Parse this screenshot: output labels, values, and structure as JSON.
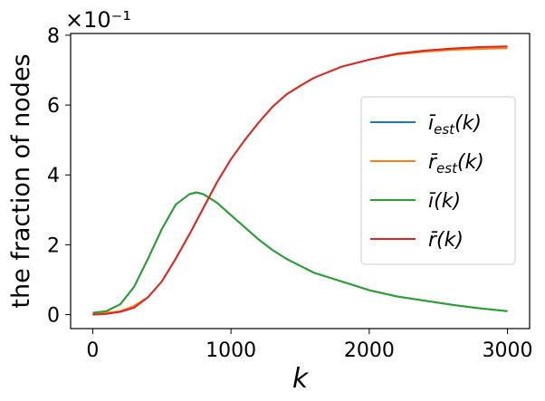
{
  "chart_data": {
    "type": "line",
    "xlabel": "k",
    "ylabel": "the fraction of nodes",
    "scale_note": "×10⁻¹",
    "xlim": [
      -160,
      3160
    ],
    "ylim": [
      -0.4,
      8.05
    ],
    "xticks": [
      0,
      1000,
      2000,
      3000
    ],
    "xtick_labels": [
      "0",
      "1000",
      "2000",
      "3000"
    ],
    "yticks": [
      0,
      2,
      4,
      6,
      8
    ],
    "ytick_labels": [
      "0",
      "2",
      "4",
      "6",
      "8"
    ],
    "grid": false,
    "legend_position": "center-right",
    "series": [
      {
        "name": "ī_est(k)",
        "label_main": "ī",
        "label_sub": "est",
        "label_tail": "(k)",
        "color": "#1f77b4",
        "x": [
          0,
          100,
          200,
          300,
          400,
          500,
          600,
          700,
          750,
          800,
          900,
          1000,
          1100,
          1200,
          1300,
          1400,
          1500,
          1600,
          1800,
          2000,
          2200,
          2400,
          2600,
          2800,
          3000
        ],
        "y": [
          0.05,
          0.1,
          0.3,
          0.8,
          1.6,
          2.45,
          3.15,
          3.45,
          3.5,
          3.45,
          3.2,
          2.85,
          2.5,
          2.15,
          1.85,
          1.6,
          1.4,
          1.2,
          0.95,
          0.7,
          0.52,
          0.4,
          0.28,
          0.18,
          0.1
        ]
      },
      {
        "name": "r̄_est(k)",
        "label_main": "r̄",
        "label_sub": "est",
        "label_tail": "(k)",
        "color": "#ff7f0e",
        "x": [
          0,
          100,
          200,
          300,
          400,
          500,
          600,
          700,
          800,
          900,
          1000,
          1100,
          1200,
          1300,
          1400,
          1500,
          1600,
          1800,
          2000,
          2200,
          2400,
          2600,
          2800,
          3000
        ],
        "y": [
          0.0,
          0.05,
          0.1,
          0.25,
          0.5,
          0.95,
          1.6,
          2.3,
          3.05,
          3.8,
          4.45,
          5.0,
          5.5,
          5.95,
          6.3,
          6.55,
          6.78,
          7.1,
          7.3,
          7.45,
          7.53,
          7.58,
          7.61,
          7.63
        ]
      },
      {
        "name": "ī(k)",
        "label_main": "ī",
        "label_sub": "",
        "label_tail": "(k)",
        "color": "#2ca02c",
        "x": [
          0,
          100,
          200,
          300,
          400,
          500,
          600,
          700,
          750,
          800,
          900,
          1000,
          1100,
          1200,
          1300,
          1400,
          1500,
          1600,
          1800,
          2000,
          2200,
          2400,
          2600,
          2800,
          3000
        ],
        "y": [
          0.05,
          0.1,
          0.3,
          0.8,
          1.6,
          2.45,
          3.15,
          3.45,
          3.5,
          3.45,
          3.2,
          2.85,
          2.5,
          2.15,
          1.85,
          1.6,
          1.4,
          1.2,
          0.95,
          0.7,
          0.52,
          0.4,
          0.28,
          0.18,
          0.1
        ]
      },
      {
        "name": "r̄(k)",
        "label_main": "r̄",
        "label_sub": "",
        "label_tail": "(k)",
        "color": "#d62728",
        "x": [
          0,
          100,
          200,
          300,
          400,
          500,
          600,
          700,
          800,
          900,
          1000,
          1100,
          1200,
          1300,
          1400,
          1500,
          1600,
          1800,
          2000,
          2200,
          2400,
          2600,
          2800,
          3000
        ],
        "y": [
          0.0,
          0.02,
          0.08,
          0.2,
          0.5,
          0.95,
          1.6,
          2.3,
          3.05,
          3.8,
          4.45,
          5.0,
          5.5,
          5.95,
          6.3,
          6.55,
          6.78,
          7.1,
          7.3,
          7.47,
          7.56,
          7.62,
          7.66,
          7.68
        ]
      }
    ]
  }
}
